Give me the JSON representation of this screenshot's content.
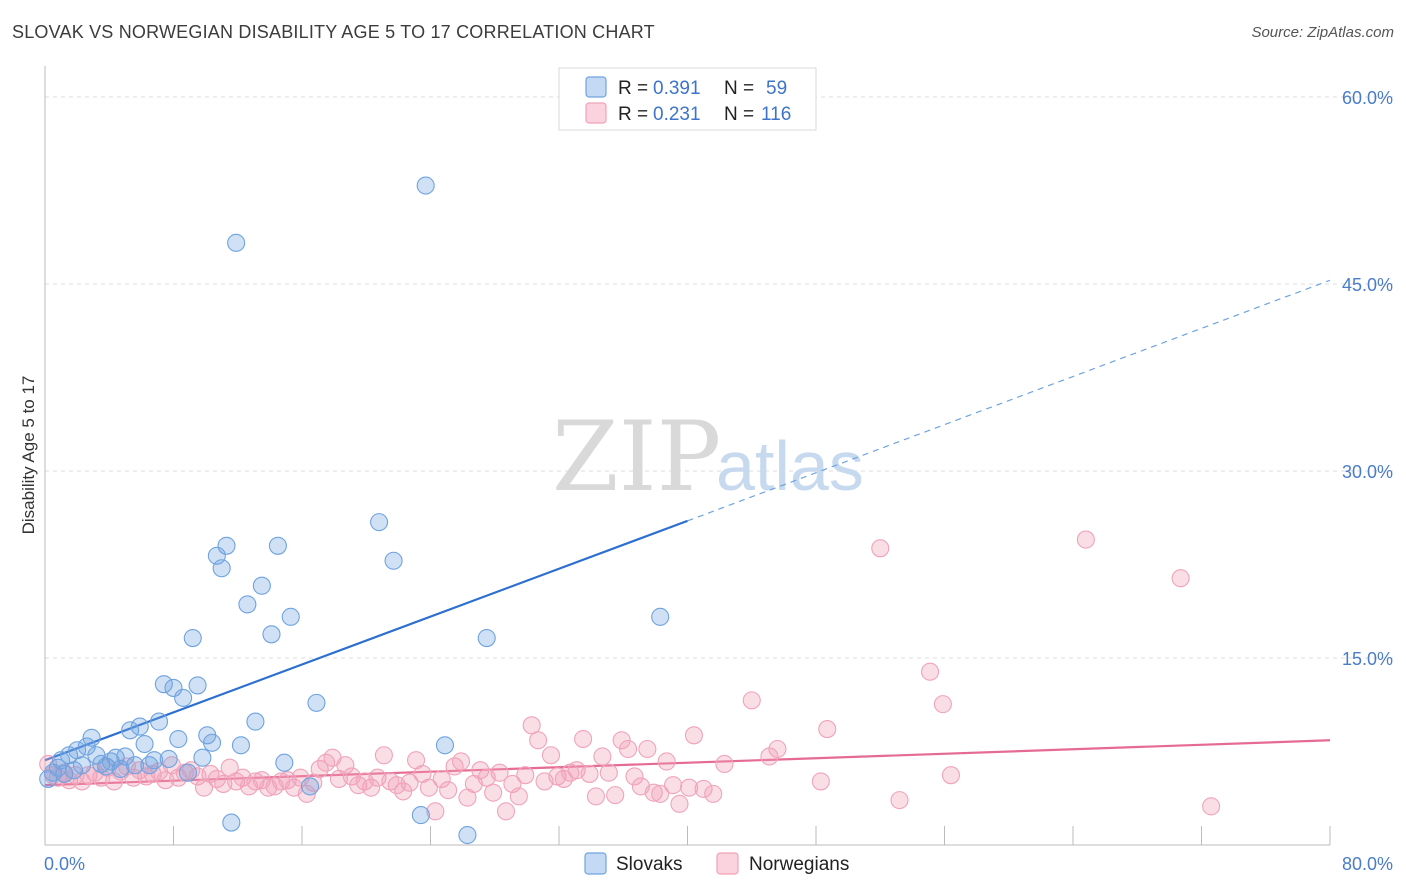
{
  "title": "SLOVAK VS NORWEGIAN DISABILITY AGE 5 TO 17 CORRELATION CHART",
  "source": "Source: ZipAtlas.com",
  "watermark": {
    "part1": "ZIP",
    "part2": "atlas"
  },
  "colors": {
    "slovaks": "#6fa3e0",
    "slovaks_line": "#2c6fcf",
    "norwegians": "#f2a0b8",
    "norwegians_line": "#e56b93",
    "tick": "#4a7cc7"
  },
  "legend_top": [
    {
      "r_label": "R = ",
      "r_value": "0.391",
      "n_label": "N = ",
      "n_value": "59"
    },
    {
      "r_label": "R = ",
      "r_value": "0.231",
      "n_label": "N = ",
      "n_value": "116"
    }
  ],
  "chart_data": {
    "type": "scatter",
    "title": "SLOVAK VS NORWEGIAN DISABILITY AGE 5 TO 17 CORRELATION CHART",
    "xlabel": "",
    "ylabel": "Disability Age 5 to 17",
    "xlim": [
      0,
      80
    ],
    "ylim": [
      0,
      62
    ],
    "x_tick_labels": [
      "0.0%",
      "80.0%"
    ],
    "y_ticks": [
      15,
      30,
      45,
      60
    ],
    "y_tick_labels": [
      "15.0%",
      "30.0%",
      "45.0%",
      "60.0%"
    ],
    "grid": "horizontal dashed",
    "legend_placement": "top-center and bottom",
    "series": [
      {
        "name": "Slovaks",
        "r": 0.391,
        "n": 59,
        "trend": {
          "x0": 0,
          "y0": 6.8,
          "x1": 40,
          "y1": 26,
          "dashed_to": {
            "x": 80,
            "y": 45.3
          }
        },
        "points": [
          [
            0.2,
            5.3
          ],
          [
            0.5,
            5.8
          ],
          [
            0.8,
            6.2
          ],
          [
            1.0,
            6.8
          ],
          [
            1.2,
            5.7
          ],
          [
            1.5,
            7.2
          ],
          [
            1.8,
            6.0
          ],
          [
            2.0,
            7.6
          ],
          [
            2.3,
            6.4
          ],
          [
            2.6,
            7.9
          ],
          [
            2.9,
            8.6
          ],
          [
            3.2,
            7.2
          ],
          [
            3.5,
            6.5
          ],
          [
            3.8,
            6.3
          ],
          [
            4.1,
            6.7
          ],
          [
            4.4,
            7.0
          ],
          [
            4.7,
            6.1
          ],
          [
            5.0,
            7.1
          ],
          [
            5.3,
            9.2
          ],
          [
            5.6,
            6.4
          ],
          [
            5.9,
            9.5
          ],
          [
            6.2,
            8.1
          ],
          [
            6.5,
            6.4
          ],
          [
            6.8,
            6.8
          ],
          [
            7.1,
            9.9
          ],
          [
            7.4,
            12.9
          ],
          [
            7.7,
            6.9
          ],
          [
            8.0,
            12.6
          ],
          [
            8.3,
            8.5
          ],
          [
            8.6,
            11.8
          ],
          [
            8.9,
            5.8
          ],
          [
            9.2,
            16.6
          ],
          [
            9.5,
            12.8
          ],
          [
            9.8,
            7.0
          ],
          [
            10.1,
            8.8
          ],
          [
            10.4,
            8.2
          ],
          [
            10.7,
            23.2
          ],
          [
            11.0,
            22.2
          ],
          [
            11.3,
            24.0
          ],
          [
            11.6,
            1.8
          ],
          [
            11.9,
            48.3
          ],
          [
            12.2,
            8.0
          ],
          [
            12.6,
            19.3
          ],
          [
            13.1,
            9.9
          ],
          [
            13.5,
            20.8
          ],
          [
            14.1,
            16.9
          ],
          [
            14.5,
            24.0
          ],
          [
            14.9,
            6.6
          ],
          [
            15.3,
            18.3
          ],
          [
            16.5,
            4.7
          ],
          [
            16.9,
            11.4
          ],
          [
            20.8,
            25.9
          ],
          [
            21.7,
            22.8
          ],
          [
            23.4,
            2.4
          ],
          [
            23.7,
            52.9
          ],
          [
            24.9,
            8.0
          ],
          [
            26.3,
            0.8
          ],
          [
            27.5,
            16.6
          ],
          [
            38.3,
            18.3
          ]
        ]
      },
      {
        "name": "Norwegians",
        "r": 0.231,
        "n": 116,
        "trend": {
          "x0": 0,
          "y0": 4.8,
          "x1": 80,
          "y1": 8.4
        },
        "points": [
          [
            0.2,
            6.5
          ],
          [
            0.5,
            5.6
          ],
          [
            0.8,
            5.4
          ],
          [
            1.2,
            5.8
          ],
          [
            1.5,
            5.2
          ],
          [
            1.9,
            5.6
          ],
          [
            2.3,
            5.1
          ],
          [
            2.7,
            5.6
          ],
          [
            3.1,
            5.8
          ],
          [
            3.5,
            5.4
          ],
          [
            3.9,
            6.2
          ],
          [
            4.3,
            5.1
          ],
          [
            4.7,
            5.9
          ],
          [
            5.1,
            6.3
          ],
          [
            5.5,
            5.4
          ],
          [
            5.9,
            6.0
          ],
          [
            6.3,
            5.5
          ],
          [
            6.7,
            5.7
          ],
          [
            7.1,
            5.9
          ],
          [
            7.5,
            5.2
          ],
          [
            7.9,
            6.4
          ],
          [
            8.3,
            5.4
          ],
          [
            8.7,
            5.8
          ],
          [
            9.1,
            6.0
          ],
          [
            9.5,
            5.5
          ],
          [
            9.9,
            4.6
          ],
          [
            10.3,
            5.7
          ],
          [
            10.7,
            5.3
          ],
          [
            11.1,
            4.9
          ],
          [
            11.5,
            6.2
          ],
          [
            11.9,
            5.1
          ],
          [
            12.3,
            5.4
          ],
          [
            12.7,
            4.7
          ],
          [
            13.1,
            5.1
          ],
          [
            13.5,
            5.2
          ],
          [
            13.9,
            4.6
          ],
          [
            14.3,
            4.7
          ],
          [
            14.7,
            5.1
          ],
          [
            15.1,
            5.2
          ],
          [
            15.5,
            4.6
          ],
          [
            15.9,
            5.4
          ],
          [
            16.3,
            4.1
          ],
          [
            16.7,
            5.0
          ],
          [
            17.1,
            6.1
          ],
          [
            17.5,
            6.6
          ],
          [
            17.9,
            7.0
          ],
          [
            18.3,
            5.3
          ],
          [
            18.7,
            6.4
          ],
          [
            19.1,
            5.5
          ],
          [
            19.5,
            4.8
          ],
          [
            19.9,
            5.1
          ],
          [
            20.3,
            4.6
          ],
          [
            20.7,
            5.4
          ],
          [
            21.1,
            7.2
          ],
          [
            21.5,
            5.1
          ],
          [
            21.9,
            4.8
          ],
          [
            22.3,
            4.3
          ],
          [
            22.7,
            5.0
          ],
          [
            23.1,
            6.8
          ],
          [
            23.5,
            5.7
          ],
          [
            23.9,
            4.6
          ],
          [
            24.3,
            2.7
          ],
          [
            24.7,
            5.3
          ],
          [
            25.1,
            4.4
          ],
          [
            25.5,
            6.3
          ],
          [
            25.9,
            6.7
          ],
          [
            26.3,
            3.8
          ],
          [
            26.7,
            4.9
          ],
          [
            27.1,
            6.0
          ],
          [
            27.5,
            5.4
          ],
          [
            27.9,
            4.2
          ],
          [
            28.3,
            5.8
          ],
          [
            28.7,
            2.7
          ],
          [
            29.1,
            4.9
          ],
          [
            29.5,
            3.9
          ],
          [
            29.9,
            5.6
          ],
          [
            30.3,
            9.6
          ],
          [
            30.7,
            8.4
          ],
          [
            31.1,
            5.1
          ],
          [
            31.5,
            7.2
          ],
          [
            31.9,
            5.5
          ],
          [
            32.3,
            5.3
          ],
          [
            32.7,
            5.8
          ],
          [
            33.1,
            6.0
          ],
          [
            33.5,
            8.5
          ],
          [
            33.9,
            5.7
          ],
          [
            34.3,
            3.9
          ],
          [
            34.7,
            7.1
          ],
          [
            35.1,
            5.8
          ],
          [
            35.5,
            4.0
          ],
          [
            35.9,
            8.4
          ],
          [
            36.3,
            7.7
          ],
          [
            36.7,
            5.5
          ],
          [
            37.1,
            4.7
          ],
          [
            37.5,
            7.7
          ],
          [
            37.9,
            4.2
          ],
          [
            38.3,
            4.1
          ],
          [
            38.7,
            6.7
          ],
          [
            39.1,
            4.8
          ],
          [
            39.5,
            3.3
          ],
          [
            40.1,
            4.6
          ],
          [
            40.4,
            8.8
          ],
          [
            41.0,
            4.5
          ],
          [
            41.6,
            4.1
          ],
          [
            42.3,
            6.5
          ],
          [
            44.0,
            11.6
          ],
          [
            45.1,
            7.1
          ],
          [
            45.6,
            7.7
          ],
          [
            48.7,
            9.3
          ],
          [
            48.3,
            5.1
          ],
          [
            52.0,
            23.8
          ],
          [
            53.2,
            3.6
          ],
          [
            55.1,
            13.9
          ],
          [
            55.9,
            11.3
          ],
          [
            56.4,
            5.6
          ],
          [
            64.8,
            24.5
          ],
          [
            70.7,
            21.4
          ],
          [
            72.6,
            3.1
          ]
        ]
      }
    ]
  },
  "bottom_legend": [
    {
      "label": "Slovaks"
    },
    {
      "label": "Norwegians"
    }
  ]
}
